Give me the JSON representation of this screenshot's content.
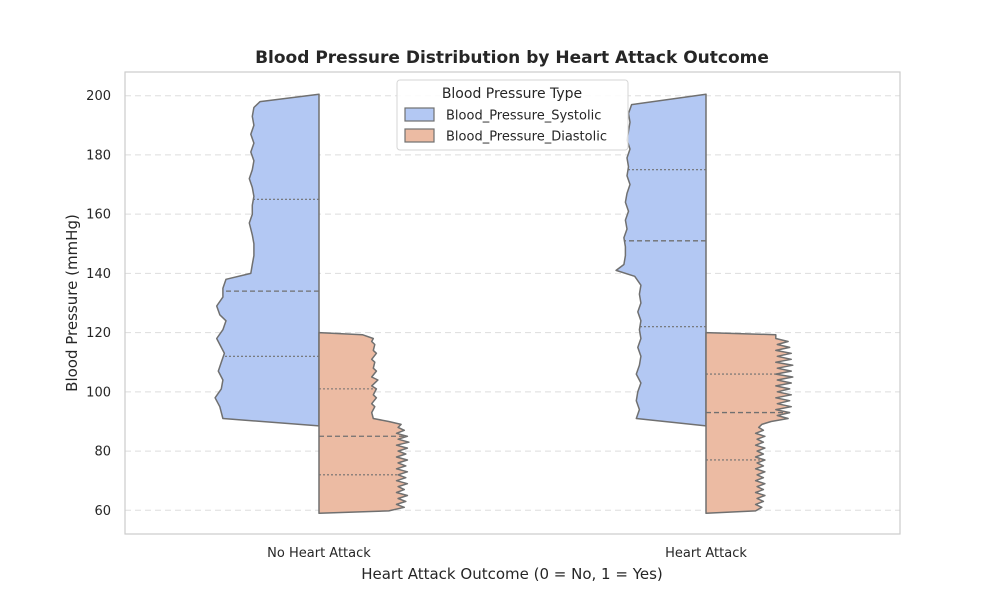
{
  "chart_data": {
    "type": "violin",
    "title": "Blood Pressure Distribution by Heart Attack Outcome",
    "xlabel": "Heart Attack Outcome (0 = No, 1 = Yes)",
    "ylabel": "Blood Pressure (mmHg)",
    "categories": [
      "No Heart Attack",
      "Heart Attack"
    ],
    "ylim": [
      52,
      208
    ],
    "yticks": [
      60,
      80,
      100,
      120,
      140,
      160,
      180,
      200
    ],
    "grid": true,
    "grid_style": "dashed",
    "split": true,
    "legend": {
      "title": "Blood Pressure Type",
      "position": "top-center"
    },
    "series": [
      {
        "name": "Blood_Pressure_Systolic",
        "color": "#b3c8f3",
        "side": "left",
        "violins": [
          {
            "category": "No Heart Attack",
            "min": 88.5,
            "max": 200.5,
            "quartiles": [
              112,
              134,
              165
            ],
            "profile": [
              [
                88.5,
                0.0
              ],
              [
                91,
                0.62
              ],
              [
                95,
                0.64
              ],
              [
                98,
                0.67
              ],
              [
                101,
                0.63
              ],
              [
                104,
                0.62
              ],
              [
                107,
                0.65
              ],
              [
                110,
                0.63
              ],
              [
                113,
                0.61
              ],
              [
                116,
                0.64
              ],
              [
                118,
                0.66
              ],
              [
                121,
                0.62
              ],
              [
                124,
                0.6
              ],
              [
                126,
                0.64
              ],
              [
                129,
                0.66
              ],
              [
                132,
                0.62
              ],
              [
                135,
                0.62
              ],
              [
                138,
                0.6
              ],
              [
                140,
                0.44
              ],
              [
                143,
                0.43
              ],
              [
                146,
                0.42
              ],
              [
                150,
                0.42
              ],
              [
                153,
                0.43
              ],
              [
                157,
                0.45
              ],
              [
                160,
                0.43
              ],
              [
                163,
                0.43
              ],
              [
                166,
                0.42
              ],
              [
                169,
                0.43
              ],
              [
                172,
                0.45
              ],
              [
                175,
                0.43
              ],
              [
                178,
                0.42
              ],
              [
                181,
                0.44
              ],
              [
                184,
                0.42
              ],
              [
                187,
                0.44
              ],
              [
                190,
                0.42
              ],
              [
                193,
                0.43
              ],
              [
                196,
                0.42
              ],
              [
                198,
                0.38
              ],
              [
                200.5,
                0.0
              ]
            ]
          },
          {
            "category": "Heart Attack",
            "min": 88.5,
            "max": 200.5,
            "quartiles": [
              122,
              151,
              175
            ],
            "profile": [
              [
                88.5,
                0.0
              ],
              [
                91,
                0.45
              ],
              [
                94,
                0.43
              ],
              [
                97,
                0.45
              ],
              [
                100,
                0.44
              ],
              [
                103,
                0.42
              ],
              [
                106,
                0.45
              ],
              [
                109,
                0.43
              ],
              [
                112,
                0.42
              ],
              [
                115,
                0.44
              ],
              [
                118,
                0.42
              ],
              [
                121,
                0.43
              ],
              [
                124,
                0.42
              ],
              [
                127,
                0.44
              ],
              [
                130,
                0.42
              ],
              [
                133,
                0.43
              ],
              [
                136,
                0.42
              ],
              [
                139,
                0.46
              ],
              [
                141,
                0.58
              ],
              [
                143,
                0.53
              ],
              [
                146,
                0.52
              ],
              [
                149,
                0.52
              ],
              [
                152,
                0.53
              ],
              [
                155,
                0.51
              ],
              [
                158,
                0.52
              ],
              [
                161,
                0.5
              ],
              [
                164,
                0.52
              ],
              [
                167,
                0.51
              ],
              [
                170,
                0.49
              ],
              [
                173,
                0.51
              ],
              [
                176,
                0.5
              ],
              [
                179,
                0.51
              ],
              [
                182,
                0.49
              ],
              [
                185,
                0.51
              ],
              [
                188,
                0.5
              ],
              [
                191,
                0.49
              ],
              [
                194,
                0.5
              ],
              [
                197,
                0.48
              ],
              [
                200.5,
                0.0
              ]
            ]
          }
        ]
      },
      {
        "name": "Blood_Pressure_Diastolic",
        "color": "#ecbba3",
        "side": "right",
        "violins": [
          {
            "category": "No Heart Attack",
            "min": 59,
            "max": 120,
            "quartiles": [
              72,
              85,
              101
            ],
            "profile": [
              [
                59,
                0.0
              ],
              [
                59.8,
                0.45
              ],
              [
                61,
                0.55
              ],
              [
                62,
                0.5
              ],
              [
                63,
                0.56
              ],
              [
                64,
                0.51
              ],
              [
                65,
                0.57
              ],
              [
                66,
                0.5
              ],
              [
                67,
                0.55
              ],
              [
                68,
                0.51
              ],
              [
                69,
                0.57
              ],
              [
                70,
                0.5
              ],
              [
                71,
                0.56
              ],
              [
                72,
                0.51
              ],
              [
                73,
                0.57
              ],
              [
                74,
                0.5
              ],
              [
                75,
                0.56
              ],
              [
                76,
                0.51
              ],
              [
                77,
                0.57
              ],
              [
                78,
                0.5
              ],
              [
                79,
                0.56
              ],
              [
                80,
                0.51
              ],
              [
                81,
                0.57
              ],
              [
                82,
                0.5
              ],
              [
                83,
                0.58
              ],
              [
                84,
                0.51
              ],
              [
                85,
                0.57
              ],
              [
                86,
                0.5
              ],
              [
                87,
                0.55
              ],
              [
                88,
                0.51
              ],
              [
                89,
                0.53
              ],
              [
                90,
                0.45
              ],
              [
                91,
                0.35
              ],
              [
                93,
                0.34
              ],
              [
                95,
                0.36
              ],
              [
                96,
                0.34
              ],
              [
                98,
                0.37
              ],
              [
                99,
                0.35
              ],
              [
                101,
                0.37
              ],
              [
                102,
                0.34
              ],
              [
                104,
                0.38
              ],
              [
                105,
                0.34
              ],
              [
                107,
                0.37
              ],
              [
                108,
                0.35
              ],
              [
                110,
                0.36
              ],
              [
                111,
                0.34
              ],
              [
                113,
                0.37
              ],
              [
                114,
                0.35
              ],
              [
                116,
                0.36
              ],
              [
                117,
                0.34
              ],
              [
                118,
                0.35
              ],
              [
                119.3,
                0.28
              ],
              [
                120,
                0.0
              ]
            ]
          },
          {
            "category": "Heart Attack",
            "min": 59,
            "max": 120,
            "quartiles": [
              77,
              93,
              106
            ],
            "profile": [
              [
                59,
                0.0
              ],
              [
                59.8,
                0.32
              ],
              [
                61,
                0.36
              ],
              [
                62,
                0.32
              ],
              [
                63,
                0.37
              ],
              [
                64,
                0.33
              ],
              [
                65,
                0.38
              ],
              [
                66,
                0.32
              ],
              [
                67,
                0.37
              ],
              [
                68,
                0.33
              ],
              [
                69,
                0.38
              ],
              [
                70,
                0.32
              ],
              [
                71,
                0.37
              ],
              [
                72,
                0.33
              ],
              [
                73,
                0.38
              ],
              [
                74,
                0.32
              ],
              [
                75,
                0.37
              ],
              [
                76,
                0.33
              ],
              [
                77,
                0.38
              ],
              [
                78,
                0.32
              ],
              [
                79,
                0.37
              ],
              [
                80,
                0.33
              ],
              [
                81,
                0.38
              ],
              [
                82,
                0.32
              ],
              [
                83,
                0.37
              ],
              [
                84,
                0.33
              ],
              [
                85,
                0.38
              ],
              [
                86,
                0.32
              ],
              [
                87,
                0.37
              ],
              [
                88,
                0.34
              ],
              [
                89,
                0.36
              ],
              [
                90,
                0.42
              ],
              [
                91,
                0.53
              ],
              [
                92,
                0.46
              ],
              [
                93,
                0.54
              ],
              [
                94,
                0.45
              ],
              [
                95,
                0.55
              ],
              [
                96,
                0.46
              ],
              [
                97,
                0.54
              ],
              [
                98,
                0.45
              ],
              [
                99,
                0.55
              ],
              [
                100,
                0.46
              ],
              [
                101,
                0.54
              ],
              [
                102,
                0.45
              ],
              [
                103,
                0.55
              ],
              [
                104,
                0.46
              ],
              [
                105,
                0.56
              ],
              [
                106,
                0.45
              ],
              [
                107,
                0.55
              ],
              [
                108,
                0.46
              ],
              [
                109,
                0.56
              ],
              [
                110,
                0.45
              ],
              [
                111,
                0.55
              ],
              [
                112,
                0.46
              ],
              [
                113,
                0.55
              ],
              [
                114,
                0.45
              ],
              [
                115,
                0.54
              ],
              [
                116,
                0.46
              ],
              [
                117,
                0.53
              ],
              [
                118,
                0.45
              ],
              [
                119.3,
                0.45
              ],
              [
                120,
                0.0
              ]
            ]
          }
        ]
      }
    ]
  }
}
